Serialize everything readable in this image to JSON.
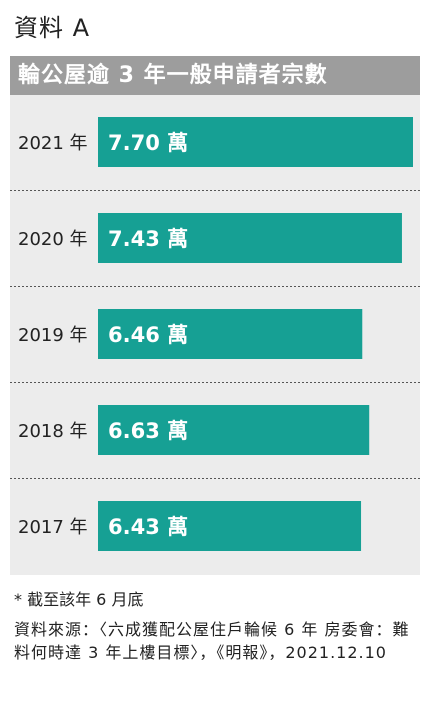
{
  "header": "資料 A",
  "note": "* 截至該年 6 月底",
  "source": "資料來源：〈六成獲配公屋住戶輪候 6 年 房委會：難料何時達 3 年上樓目標〉，《明報》，2021.12.10",
  "colors": {
    "bar": "#16a094",
    "title_bg": "#9d9d9d",
    "panel_bg": "#ececec"
  },
  "chart_data": {
    "type": "bar",
    "orientation": "horizontal",
    "title": "輪公屋逾 3 年一般申請者宗數",
    "categories": [
      "2021 年",
      "2020 年",
      "2019 年",
      "2018 年",
      "2017 年"
    ],
    "values": [
      7.7,
      7.43,
      6.46,
      6.63,
      6.43
    ],
    "value_labels": [
      "7.70 萬",
      "7.43 萬",
      "6.46 萬",
      "6.63 萬",
      "6.43 萬"
    ],
    "unit": "萬",
    "xlim": [
      0,
      7.7
    ],
    "grid": false
  }
}
